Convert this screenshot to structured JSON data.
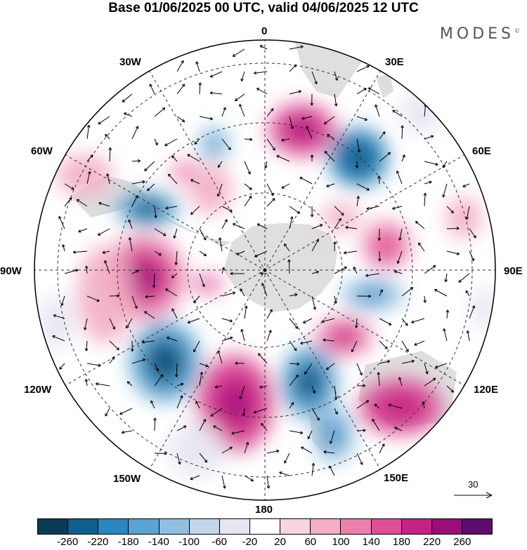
{
  "title": "Base 01/06/2025 00 UTC, valid 04/06/2025 12 UTC",
  "brand": "MODES",
  "brand_mark": "©",
  "longitude_labels": {
    "n0": "0",
    "e30": "30E",
    "e60": "60E",
    "e90": "90E",
    "e120": "120E",
    "e150": "150E",
    "s180": "180",
    "w150": "150W",
    "w120": "120W",
    "w90": "90W",
    "w60": "60W",
    "w30": "30W"
  },
  "reference_vector": {
    "label": "30"
  },
  "colorbar": {
    "colors": [
      "#0d3a57",
      "#105f8f",
      "#2c86c0",
      "#5aa3d2",
      "#92bfe0",
      "#c3d5ea",
      "#e6e6f2",
      "#ffffff",
      "#f7d5dc",
      "#f3aec4",
      "#ec80ac",
      "#df4f96",
      "#c52284",
      "#9c0d7a",
      "#5e0c6e"
    ],
    "ticks": [
      "-260",
      "-220",
      "-180",
      "-140",
      "-100",
      "-60",
      "-20",
      "20",
      "60",
      "100",
      "140",
      "180",
      "220",
      "260"
    ]
  }
}
